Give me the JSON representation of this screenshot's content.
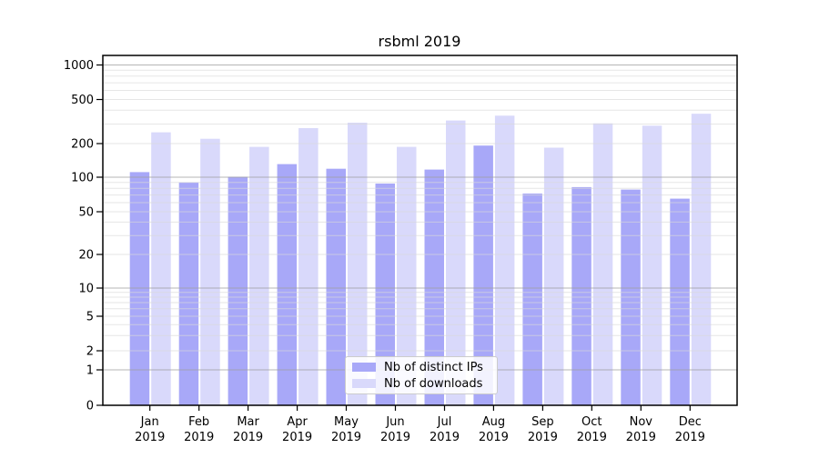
{
  "title": "rsbml 2019",
  "colors": {
    "bar_ips": "#a8a8f8",
    "bar_downloads": "#d9d9fb",
    "grid_major": "#9e9e9e",
    "grid_minor": "#d9d9d9",
    "axis": "#000000",
    "background": "#ffffff"
  },
  "legend": {
    "items": [
      {
        "label": "Nb of distinct IPs",
        "swatch": "bar_ips"
      },
      {
        "label": "Nb of downloads",
        "swatch": "bar_downloads"
      }
    ]
  },
  "chart_data": {
    "type": "bar",
    "title": "rsbml 2019",
    "categories": [
      "Jan 2019",
      "Feb 2019",
      "Mar 2019",
      "Apr 2019",
      "May 2019",
      "Jun 2019",
      "Jul 2019",
      "Aug 2019",
      "Sep 2019",
      "Oct 2019",
      "Nov 2019",
      "Dec 2019"
    ],
    "series": [
      {
        "name": "Nb of distinct IPs",
        "values": [
          111,
          90,
          101,
          131,
          119,
          88,
          117,
          192,
          72,
          82,
          78,
          65
        ]
      },
      {
        "name": "Nb of downloads",
        "values": [
          253,
          221,
          187,
          276,
          309,
          187,
          323,
          357,
          184,
          305,
          290,
          372
        ]
      }
    ],
    "xlabel": "",
    "ylabel": "",
    "yscale": "symlog",
    "yticks": [
      0,
      1,
      2,
      5,
      10,
      20,
      50,
      100,
      200,
      500,
      1000
    ],
    "ylim": [
      0,
      1000
    ],
    "grid": "horizontal",
    "legend_position": "lower center"
  }
}
